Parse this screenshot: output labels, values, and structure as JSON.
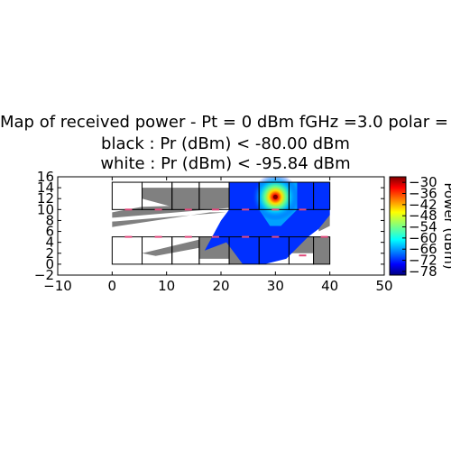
{
  "chart_data": {
    "type": "heatmap",
    "title_lines": [
      "Map of received power - Pt = 0 dBm fGHz =3.0 polar = t",
      "black : Pr (dBm) < -80.00 dBm",
      "white : Pr (dBm) < -95.84 dBm"
    ],
    "xlim": [
      -10,
      50
    ],
    "ylim": [
      -2,
      16
    ],
    "x_ticks": [
      "−10",
      "0",
      "10",
      "20",
      "30",
      "40",
      "50"
    ],
    "y_ticks": [
      "−2",
      "0",
      "2",
      "4",
      "6",
      "8",
      "10",
      "12",
      "14",
      "16"
    ],
    "colorbar": {
      "label": "Power (dBm)",
      "range": [
        -80,
        -27
      ],
      "ticks": [
        "−30",
        "−36",
        "−42",
        "−48",
        "−54",
        "−60",
        "−66",
        "−72",
        "−78"
      ],
      "tick_values": [
        -30,
        -36,
        -42,
        -48,
        -54,
        -60,
        -66,
        -72,
        -78
      ],
      "colormap": "jet"
    },
    "transmitter": {
      "x": 30,
      "y": 12.3
    },
    "building_extent": {
      "x": [
        0,
        40
      ],
      "y": [
        0,
        15
      ]
    },
    "rooms": [
      {
        "x0": 0,
        "y0": 10,
        "x1": 5.5,
        "y1": 15
      },
      {
        "x0": 5.5,
        "y0": 10,
        "x1": 11,
        "y1": 15
      },
      {
        "x0": 11,
        "y0": 10,
        "x1": 16,
        "y1": 15
      },
      {
        "x0": 16,
        "y0": 10,
        "x1": 21.5,
        "y1": 15
      },
      {
        "x0": 21.5,
        "y0": 10,
        "x1": 27,
        "y1": 15
      },
      {
        "x0": 27,
        "y0": 10,
        "x1": 32.5,
        "y1": 15
      },
      {
        "x0": 32.5,
        "y0": 10,
        "x1": 37,
        "y1": 15
      },
      {
        "x0": 37,
        "y0": 10,
        "x1": 40,
        "y1": 15
      },
      {
        "x0": 0,
        "y0": 0,
        "x1": 5.5,
        "y1": 5
      },
      {
        "x0": 5.5,
        "y0": 0,
        "x1": 11,
        "y1": 5
      },
      {
        "x0": 11,
        "y0": 0,
        "x1": 16,
        "y1": 5
      },
      {
        "x0": 16,
        "y0": 0,
        "x1": 21.5,
        "y1": 5
      },
      {
        "x0": 21.5,
        "y0": 0,
        "x1": 27,
        "y1": 5
      },
      {
        "x0": 27,
        "y0": 0,
        "x1": 32.5,
        "y1": 5
      },
      {
        "x0": 32.5,
        "y0": 0,
        "x1": 37,
        "y1": 5
      },
      {
        "x0": 37,
        "y0": 0,
        "x1": 40,
        "y1": 5
      }
    ],
    "doors": [
      {
        "x": 3,
        "y": 10
      },
      {
        "x": 8.5,
        "y": 10
      },
      {
        "x": 14,
        "y": 10
      },
      {
        "x": 19,
        "y": 10
      },
      {
        "x": 24.5,
        "y": 10
      },
      {
        "x": 30,
        "y": 10
      },
      {
        "x": 35,
        "y": 10
      },
      {
        "x": 3,
        "y": 5
      },
      {
        "x": 8.5,
        "y": 5
      },
      {
        "x": 14,
        "y": 5
      },
      {
        "x": 19,
        "y": 5
      },
      {
        "x": 24.5,
        "y": 5
      },
      {
        "x": 30,
        "y": 5
      },
      {
        "x": 35,
        "y": 1.6
      },
      {
        "x": 39,
        "y": 5
      }
    ],
    "colors": {
      "below_black_threshold": "#808080",
      "door": "#e0487a",
      "wall": "#000000"
    }
  }
}
